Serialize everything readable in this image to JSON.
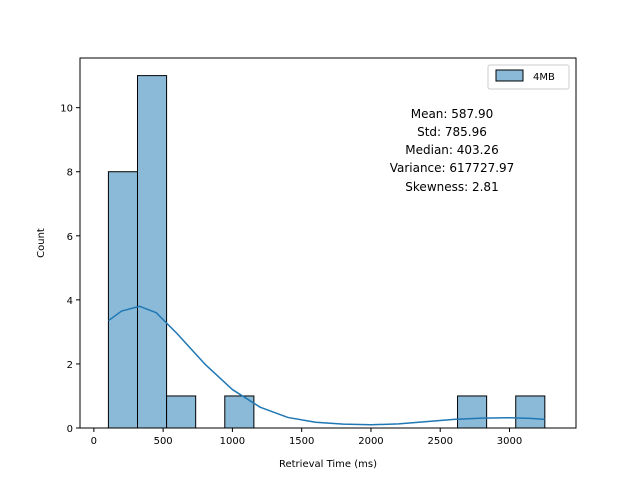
{
  "chart_data": {
    "type": "bar",
    "subtype": "histogram-with-kde",
    "xlabel": "Retrieval Time (ms)",
    "ylabel": "Count",
    "xlim": [
      -100,
      3480
    ],
    "ylim": [
      0,
      11.55
    ],
    "xticks": [
      0,
      500,
      1000,
      1500,
      2000,
      2500,
      3000
    ],
    "yticks": [
      0,
      2,
      4,
      6,
      8,
      10
    ],
    "grid": false,
    "legend": {
      "placement": "top-right",
      "entries": [
        {
          "label": "4MB",
          "color": "#8bbad9"
        }
      ]
    },
    "bars": [
      {
        "x0": 105,
        "x1": 315,
        "count": 8
      },
      {
        "x0": 315,
        "x1": 525,
        "count": 11
      },
      {
        "x0": 525,
        "x1": 735,
        "count": 1
      },
      {
        "x0": 735,
        "x1": 945,
        "count": 0
      },
      {
        "x0": 945,
        "x1": 1155,
        "count": 1
      },
      {
        "x0": 1155,
        "x1": 1365,
        "count": 0
      },
      {
        "x0": 1365,
        "x1": 1575,
        "count": 0
      },
      {
        "x0": 1575,
        "x1": 1785,
        "count": 0
      },
      {
        "x0": 1785,
        "x1": 1995,
        "count": 0
      },
      {
        "x0": 1995,
        "x1": 2205,
        "count": 0
      },
      {
        "x0": 2205,
        "x1": 2415,
        "count": 0
      },
      {
        "x0": 2415,
        "x1": 2625,
        "count": 0
      },
      {
        "x0": 2625,
        "x1": 2835,
        "count": 1
      },
      {
        "x0": 2835,
        "x1": 3045,
        "count": 0
      },
      {
        "x0": 3045,
        "x1": 3255,
        "count": 1
      }
    ],
    "kde": {
      "x": [
        105,
        200,
        330,
        450,
        600,
        800,
        1000,
        1200,
        1400,
        1600,
        1800,
        2000,
        2200,
        2400,
        2600,
        2800,
        3000,
        3150,
        3255
      ],
      "y": [
        3.35,
        3.65,
        3.8,
        3.6,
        2.95,
        2.0,
        1.2,
        0.65,
        0.33,
        0.18,
        0.12,
        0.1,
        0.13,
        0.2,
        0.27,
        0.31,
        0.32,
        0.3,
        0.27
      ]
    },
    "bar_color": "#8bbad9",
    "line_color": "#1f77b4",
    "stats": [
      "Mean: 587.90",
      "Std: 785.96",
      "Median: 403.26",
      "Variance: 617727.97",
      "Skewness: 2.81"
    ]
  }
}
